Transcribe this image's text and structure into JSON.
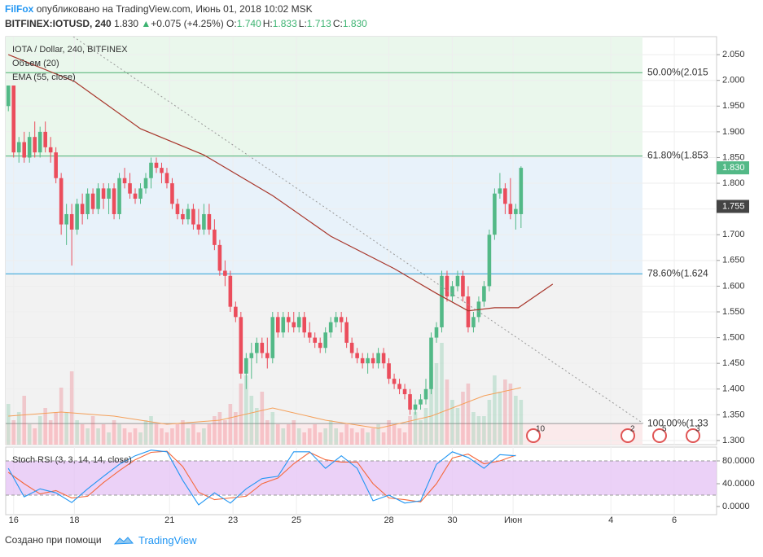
{
  "header": {
    "author": "FilFox",
    "published": "опубликовано на TradingView.com, Июнь 01, 2018 10:02 MSK",
    "symbol": "BITFINEX:IOTUSD, 240",
    "last": "1.830",
    "change": "+0.075 (+4.25%)",
    "ohlc": [
      {
        "label": "O:",
        "value": "1.740"
      },
      {
        "label": "H:",
        "value": "1.833"
      },
      {
        "label": "L:",
        "value": "1.713"
      },
      {
        "label": "C:",
        "value": "1.830"
      }
    ]
  },
  "footer": {
    "text": "Создано при помощи",
    "brand": "TradingView"
  },
  "chart_data": {
    "type": "candlestick",
    "title": "IOTA / Dollar, 240, BITFINEX",
    "grid": true,
    "up_color": "#53b987",
    "down_color": "#eb4d5c",
    "xlim": [
      -0.5,
      134
    ],
    "xticks": [
      {
        "value": 1,
        "label": "16"
      },
      {
        "value": 12.5,
        "label": "18"
      },
      {
        "value": 30.5,
        "label": "21"
      },
      {
        "value": 42.5,
        "label": "23"
      },
      {
        "value": 54.5,
        "label": "25"
      },
      {
        "value": 72,
        "label": "28"
      },
      {
        "value": 84,
        "label": "30"
      },
      {
        "value": 95.5,
        "label": "Июн"
      },
      {
        "value": 114,
        "label": "4"
      },
      {
        "value": 126,
        "label": "6"
      }
    ],
    "ylim": [
      1.292,
      2.085
    ],
    "yticks": [
      {
        "value": 2.05,
        "label": "2.050"
      },
      {
        "value": 2.0,
        "label": "2.000"
      },
      {
        "value": 1.95,
        "label": "1.950"
      },
      {
        "value": 1.9,
        "label": "1.900"
      },
      {
        "value": 1.85,
        "label": "1.850"
      },
      {
        "value": 1.8,
        "label": "1.800"
      },
      {
        "value": 1.75,
        "label": "1.750"
      },
      {
        "value": 1.7,
        "label": "1.700"
      },
      {
        "value": 1.65,
        "label": "1.650"
      },
      {
        "value": 1.6,
        "label": "1.600"
      },
      {
        "value": 1.55,
        "label": "1.550"
      },
      {
        "value": 1.5,
        "label": "1.500"
      },
      {
        "value": 1.45,
        "label": "1.450"
      },
      {
        "value": 1.4,
        "label": "1.400"
      },
      {
        "value": 1.35,
        "label": "1.350"
      },
      {
        "value": 1.3,
        "label": "1.300"
      }
    ],
    "candles": [
      [
        1.95,
        1.99,
        1.94,
        1.99
      ],
      [
        1.99,
        1.99,
        1.85,
        1.86
      ],
      [
        1.86,
        1.89,
        1.84,
        1.88
      ],
      [
        1.88,
        1.9,
        1.84,
        1.85
      ],
      [
        1.85,
        1.9,
        1.84,
        1.89
      ],
      [
        1.89,
        1.92,
        1.85,
        1.86
      ],
      [
        1.86,
        1.91,
        1.85,
        1.9
      ],
      [
        1.9,
        1.92,
        1.86,
        1.87
      ],
      [
        1.87,
        1.89,
        1.84,
        1.86
      ],
      [
        1.86,
        1.87,
        1.8,
        1.81
      ],
      [
        1.81,
        1.82,
        1.7,
        1.72
      ],
      [
        1.72,
        1.76,
        1.68,
        1.74
      ],
      [
        1.74,
        1.76,
        1.64,
        1.71
      ],
      [
        1.71,
        1.77,
        1.7,
        1.76
      ],
      [
        1.76,
        1.78,
        1.72,
        1.74
      ],
      [
        1.74,
        1.79,
        1.73,
        1.78
      ],
      [
        1.78,
        1.79,
        1.74,
        1.75
      ],
      [
        1.75,
        1.8,
        1.74,
        1.79
      ],
      [
        1.79,
        1.8,
        1.75,
        1.77
      ],
      [
        1.77,
        1.8,
        1.74,
        1.79
      ],
      [
        1.79,
        1.8,
        1.73,
        1.74
      ],
      [
        1.74,
        1.82,
        1.73,
        1.81
      ],
      [
        1.81,
        1.83,
        1.79,
        1.8
      ],
      [
        1.8,
        1.82,
        1.77,
        1.78
      ],
      [
        1.78,
        1.79,
        1.76,
        1.77
      ],
      [
        1.77,
        1.8,
        1.76,
        1.79
      ],
      [
        1.79,
        1.82,
        1.78,
        1.81
      ],
      [
        1.81,
        1.85,
        1.79,
        1.84
      ],
      [
        1.84,
        1.85,
        1.82,
        1.83
      ],
      [
        1.83,
        1.84,
        1.8,
        1.82
      ],
      [
        1.82,
        1.83,
        1.79,
        1.8
      ],
      [
        1.8,
        1.81,
        1.75,
        1.76
      ],
      [
        1.76,
        1.77,
        1.73,
        1.74
      ],
      [
        1.74,
        1.75,
        1.72,
        1.73
      ],
      [
        1.73,
        1.76,
        1.72,
        1.75
      ],
      [
        1.75,
        1.76,
        1.71,
        1.72
      ],
      [
        1.72,
        1.75,
        1.7,
        1.71
      ],
      [
        1.71,
        1.76,
        1.7,
        1.74
      ],
      [
        1.74,
        1.76,
        1.7,
        1.71
      ],
      [
        1.71,
        1.73,
        1.67,
        1.68
      ],
      [
        1.68,
        1.69,
        1.62,
        1.63
      ],
      [
        1.63,
        1.65,
        1.6,
        1.62
      ],
      [
        1.62,
        1.63,
        1.55,
        1.56
      ],
      [
        1.56,
        1.57,
        1.53,
        1.54
      ],
      [
        1.54,
        1.55,
        1.42,
        1.43
      ],
      [
        1.43,
        1.47,
        1.4,
        1.46
      ],
      [
        1.46,
        1.49,
        1.42,
        1.47
      ],
      [
        1.47,
        1.5,
        1.45,
        1.49
      ],
      [
        1.49,
        1.5,
        1.46,
        1.47
      ],
      [
        1.47,
        1.5,
        1.44,
        1.46
      ],
      [
        1.46,
        1.55,
        1.45,
        1.54
      ],
      [
        1.54,
        1.55,
        1.5,
        1.51
      ],
      [
        1.51,
        1.55,
        1.5,
        1.54
      ],
      [
        1.54,
        1.55,
        1.51,
        1.53
      ],
      [
        1.53,
        1.55,
        1.51,
        1.52
      ],
      [
        1.52,
        1.55,
        1.51,
        1.54
      ],
      [
        1.54,
        1.55,
        1.5,
        1.51
      ],
      [
        1.51,
        1.53,
        1.49,
        1.5
      ],
      [
        1.5,
        1.51,
        1.48,
        1.49
      ],
      [
        1.49,
        1.5,
        1.47,
        1.48
      ],
      [
        1.48,
        1.52,
        1.47,
        1.51
      ],
      [
        1.51,
        1.54,
        1.5,
        1.53
      ],
      [
        1.53,
        1.55,
        1.52,
        1.54
      ],
      [
        1.54,
        1.55,
        1.51,
        1.53
      ],
      [
        1.53,
        1.54,
        1.48,
        1.49
      ],
      [
        1.49,
        1.5,
        1.46,
        1.47
      ],
      [
        1.47,
        1.48,
        1.45,
        1.46
      ],
      [
        1.46,
        1.47,
        1.44,
        1.45
      ],
      [
        1.45,
        1.47,
        1.43,
        1.46
      ],
      [
        1.46,
        1.47,
        1.44,
        1.45
      ],
      [
        1.45,
        1.48,
        1.44,
        1.47
      ],
      [
        1.47,
        1.48,
        1.44,
        1.45
      ],
      [
        1.45,
        1.46,
        1.41,
        1.42
      ],
      [
        1.42,
        1.43,
        1.4,
        1.41
      ],
      [
        1.41,
        1.42,
        1.39,
        1.4
      ],
      [
        1.4,
        1.41,
        1.38,
        1.39
      ],
      [
        1.39,
        1.4,
        1.35,
        1.36
      ],
      [
        1.36,
        1.38,
        1.35,
        1.37
      ],
      [
        1.37,
        1.39,
        1.36,
        1.38
      ],
      [
        1.38,
        1.42,
        1.37,
        1.4
      ],
      [
        1.4,
        1.51,
        1.39,
        1.5
      ],
      [
        1.5,
        1.53,
        1.49,
        1.52
      ],
      [
        1.52,
        1.63,
        1.51,
        1.62
      ],
      [
        1.62,
        1.63,
        1.57,
        1.58
      ],
      [
        1.58,
        1.61,
        1.57,
        1.6
      ],
      [
        1.6,
        1.63,
        1.59,
        1.62
      ],
      [
        1.62,
        1.63,
        1.57,
        1.58
      ],
      [
        1.58,
        1.6,
        1.51,
        1.52
      ],
      [
        1.52,
        1.55,
        1.51,
        1.54
      ],
      [
        1.54,
        1.58,
        1.53,
        1.57
      ],
      [
        1.57,
        1.61,
        1.56,
        1.6
      ],
      [
        1.6,
        1.71,
        1.59,
        1.7
      ],
      [
        1.7,
        1.79,
        1.69,
        1.78
      ],
      [
        1.78,
        1.82,
        1.77,
        1.79
      ],
      [
        1.79,
        1.8,
        1.74,
        1.76
      ],
      [
        1.76,
        1.81,
        1.73,
        1.74
      ],
      [
        1.74,
        1.76,
        1.71,
        1.75
      ],
      [
        1.74,
        1.833,
        1.713,
        1.83
      ]
    ],
    "volume": {
      "name": "Объем (20)",
      "lim": [
        0,
        130
      ],
      "values": [
        50,
        30,
        40,
        60,
        25,
        20,
        35,
        45,
        30,
        40,
        70,
        40,
        90,
        30,
        25,
        20,
        35,
        20,
        25,
        15,
        30,
        25,
        20,
        15,
        20,
        15,
        30,
        35,
        25,
        20,
        15,
        20,
        25,
        30,
        20,
        25,
        15,
        20,
        25,
        35,
        40,
        30,
        50,
        40,
        75,
        85,
        60,
        45,
        65,
        30,
        40,
        25,
        20,
        25,
        30,
        20,
        15,
        20,
        25,
        15,
        20,
        30,
        20,
        15,
        25,
        20,
        15,
        20,
        15,
        20,
        25,
        15,
        30,
        25,
        20,
        15,
        35,
        40,
        30,
        45,
        95,
        100,
        125,
        80,
        55,
        45,
        65,
        75,
        40,
        35,
        35,
        55,
        85,
        65,
        80,
        75,
        60,
        55
      ],
      "ma": {
        "color": "#f5a05a",
        "x": [
          0,
          10,
          20,
          30,
          40,
          50,
          60,
          70,
          80,
          90,
          97
        ],
        "values": [
          35,
          40,
          35,
          25,
          30,
          45,
          30,
          20,
          35,
          60,
          70
        ]
      }
    },
    "ema": {
      "name": "EMA (55, close)",
      "color": "#a8362b",
      "x": [
        0,
        12.5,
        25,
        37,
        50,
        61,
        73,
        81,
        87,
        92,
        96.5,
        103
      ],
      "values": [
        2.05,
        1.998,
        1.906,
        1.855,
        1.776,
        1.697,
        1.634,
        1.586,
        1.552,
        1.558,
        1.558,
        1.604
      ]
    },
    "fib": [
      {
        "label": "50.00%(2.015",
        "value": 2.015,
        "color": "#4caf70",
        "fill": "#eaf7ec"
      },
      {
        "label": "61.80%(1.853",
        "value": 1.853,
        "color": "#4caf70",
        "fill": "#e8f2fa"
      },
      {
        "label": "78.60%(1.624",
        "value": 1.624,
        "color": "#2a9fd6",
        "fill": "#f2f2f2"
      },
      {
        "label": "100.00%(1.33",
        "value": 1.333,
        "color": "#999999",
        "fill": "#fbeaeb"
      }
    ],
    "price_labels": [
      {
        "value": 1.83,
        "label": "1.830",
        "color": "#53b987"
      },
      {
        "value": 1.755,
        "label": "1.755",
        "color": "#444444"
      }
    ],
    "events": [
      {
        "label": "10"
      },
      {
        "label": "2"
      },
      {
        "label": "5"
      },
      {
        "label": "3"
      }
    ],
    "stoch": {
      "name": "Stoch RSI (3, 3, 14, 14, close)",
      "ylim": [
        -14.3,
        104.3
      ],
      "band": [
        20,
        80
      ],
      "band_color": "#e6c6f5",
      "yticks": [
        {
          "value": 80,
          "label": "80.0000"
        },
        {
          "value": 40,
          "label": "40.0000"
        },
        {
          "value": 0,
          "label": "0.0000"
        }
      ],
      "x": [
        0,
        3,
        6,
        9,
        12,
        15,
        18,
        21,
        24,
        27,
        30,
        33,
        36,
        39,
        42,
        45,
        48,
        51,
        54,
        57,
        60,
        63,
        66,
        69,
        72,
        75,
        78,
        81,
        84,
        87,
        90,
        93,
        96
      ],
      "series": [
        {
          "color": "#2196f3",
          "values": [
            67,
            17,
            31,
            24,
            7,
            31,
            53,
            74,
            89,
            99,
            96,
            46,
            3,
            24,
            6,
            31,
            49,
            53,
            96,
            96,
            67,
            89,
            67,
            10,
            20,
            6,
            10,
            74,
            96,
            86,
            67,
            91,
            89
          ]
        },
        {
          "color": "#f5683b",
          "values": [
            60,
            40,
            22,
            28,
            15,
            18,
            42,
            63,
            82,
            95,
            97,
            70,
            25,
            12,
            15,
            18,
            40,
            50,
            75,
            95,
            82,
            78,
            78,
            40,
            15,
            12,
            8,
            40,
            85,
            92,
            75,
            80,
            90
          ]
        }
      ]
    }
  }
}
